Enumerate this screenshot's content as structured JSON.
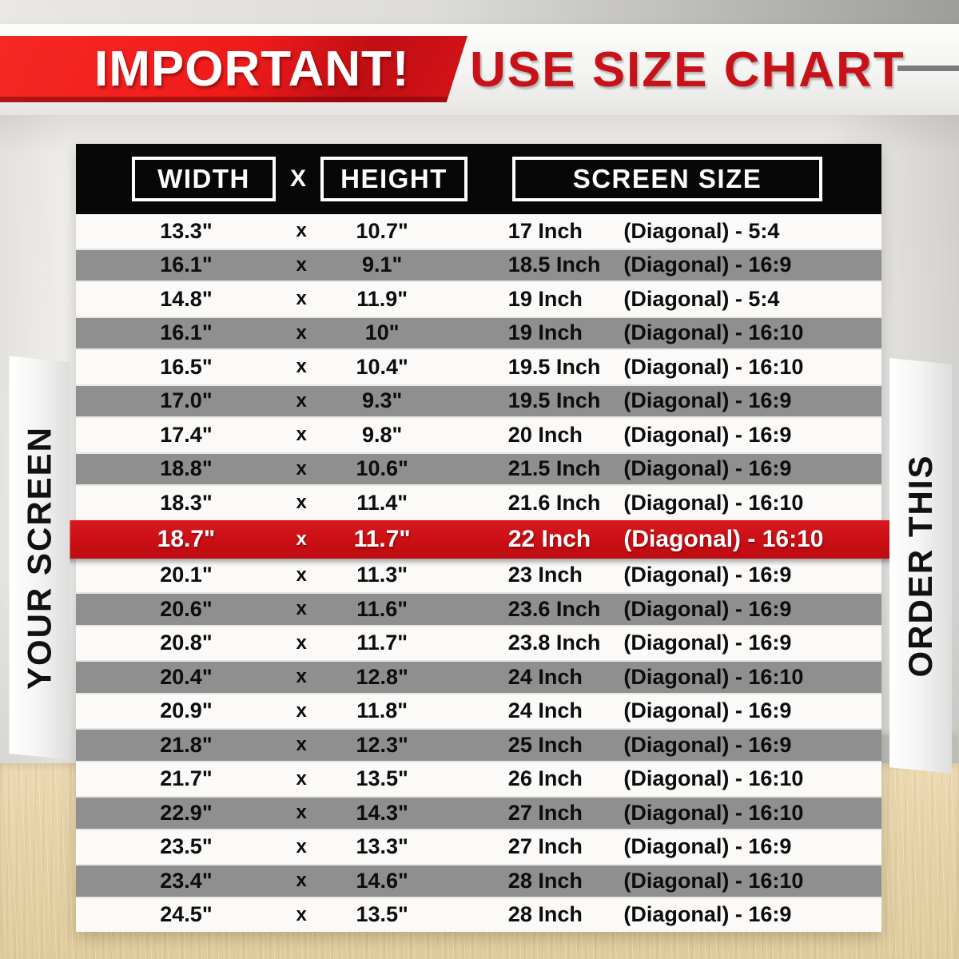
{
  "banner": {
    "important": "IMPORTANT!",
    "use_size_chart": "USE SIZE CHART"
  },
  "side_labels": {
    "your_screen": "YOUR SCREEN",
    "order_this": "ORDER THIS"
  },
  "chart_data": {
    "type": "table",
    "title": "USE SIZE CHART",
    "columns": [
      "WIDTH",
      "X",
      "HEIGHT",
      "SCREEN SIZE"
    ],
    "rows": [
      {
        "width": "13.3\"",
        "x": "x",
        "height": "10.7\"",
        "size": "17 Inch",
        "diagonal": "(Diagonal) - 5:4",
        "highlight": false
      },
      {
        "width": "16.1\"",
        "x": "x",
        "height": "9.1\"",
        "size": "18.5 Inch",
        "diagonal": "(Diagonal) - 16:9",
        "highlight": false
      },
      {
        "width": "14.8\"",
        "x": "x",
        "height": "11.9\"",
        "size": "19 Inch",
        "diagonal": "(Diagonal) - 5:4",
        "highlight": false
      },
      {
        "width": "16.1\"",
        "x": "x",
        "height": "10\"",
        "size": "19 Inch",
        "diagonal": "(Diagonal) - 16:10",
        "highlight": false
      },
      {
        "width": "16.5\"",
        "x": "x",
        "height": "10.4\"",
        "size": "19.5 Inch",
        "diagonal": "(Diagonal) - 16:10",
        "highlight": false
      },
      {
        "width": "17.0\"",
        "x": "x",
        "height": "9.3\"",
        "size": "19.5 Inch",
        "diagonal": "(Diagonal) - 16:9",
        "highlight": false
      },
      {
        "width": "17.4\"",
        "x": "x",
        "height": "9.8\"",
        "size": "20 Inch",
        "diagonal": "(Diagonal) - 16:9",
        "highlight": false
      },
      {
        "width": "18.8\"",
        "x": "x",
        "height": "10.6\"",
        "size": "21.5 Inch",
        "diagonal": "(Diagonal) - 16:9",
        "highlight": false
      },
      {
        "width": "18.3\"",
        "x": "x",
        "height": "11.4\"",
        "size": "21.6 Inch",
        "diagonal": "(Diagonal) - 16:10",
        "highlight": false
      },
      {
        "width": "18.7\"",
        "x": "x",
        "height": "11.7\"",
        "size": "22 Inch",
        "diagonal": "(Diagonal) - 16:10",
        "highlight": true
      },
      {
        "width": "20.1\"",
        "x": "x",
        "height": "11.3\"",
        "size": "23 Inch",
        "diagonal": "(Diagonal) - 16:9",
        "highlight": false
      },
      {
        "width": "20.6\"",
        "x": "x",
        "height": "11.6\"",
        "size": "23.6 Inch",
        "diagonal": "(Diagonal) - 16:9",
        "highlight": false
      },
      {
        "width": "20.8\"",
        "x": "x",
        "height": "11.7\"",
        "size": "23.8 Inch",
        "diagonal": "(Diagonal) - 16:9",
        "highlight": false
      },
      {
        "width": "20.4\"",
        "x": "x",
        "height": "12.8\"",
        "size": "24 Inch",
        "diagonal": "(Diagonal) - 16:10",
        "highlight": false
      },
      {
        "width": "20.9\"",
        "x": "x",
        "height": "11.8\"",
        "size": "24 Inch",
        "diagonal": "(Diagonal) - 16:9",
        "highlight": false
      },
      {
        "width": "21.8\"",
        "x": "x",
        "height": "12.3\"",
        "size": "25 Inch",
        "diagonal": "(Diagonal) - 16:9",
        "highlight": false
      },
      {
        "width": "21.7\"",
        "x": "x",
        "height": "13.5\"",
        "size": "26 Inch",
        "diagonal": "(Diagonal) - 16:10",
        "highlight": false
      },
      {
        "width": "22.9\"",
        "x": "x",
        "height": "14.3\"",
        "size": "27 Inch",
        "diagonal": "(Diagonal) - 16:10",
        "highlight": false
      },
      {
        "width": "23.5\"",
        "x": "x",
        "height": "13.3\"",
        "size": "27 Inch",
        "diagonal": "(Diagonal) - 16:9",
        "highlight": false
      },
      {
        "width": "23.4\"",
        "x": "x",
        "height": "14.6\"",
        "size": "28 Inch",
        "diagonal": "(Diagonal) - 16:10",
        "highlight": false
      },
      {
        "width": "24.5\"",
        "x": "x",
        "height": "13.5\"",
        "size": "28 Inch",
        "diagonal": "(Diagonal) - 16:9",
        "highlight": false
      }
    ],
    "highlighted_row": {
      "width": "18.7\"",
      "height": "11.7\"",
      "size": "22 Inch",
      "diagonal": "(Diagonal) - 16:10"
    },
    "layout": {
      "row_shading": "alternating white/gray",
      "highlight_color": "#cd1016"
    }
  },
  "colors": {
    "banner_red": "#ee1b1b",
    "accent_text_red": "#c8121a",
    "highlight_red": "#cd1016",
    "row_gray": "#8f8f8f",
    "row_white": "#fbfaf8",
    "header_black": "#070707",
    "wood": "#e6d2a6"
  }
}
